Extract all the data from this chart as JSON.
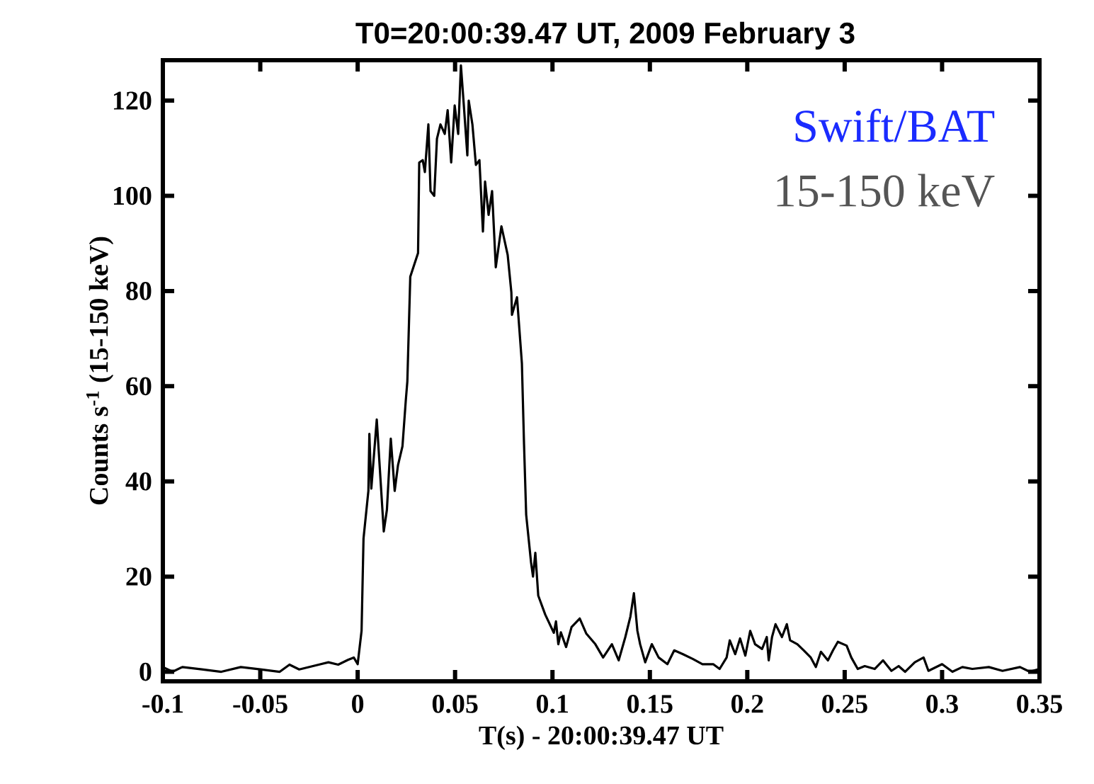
{
  "chart_data": {
    "type": "line",
    "title": "T0=20:00:39.47 UT, 2009 February 3",
    "xlabel": "T(s) - 20:00:39.47 UT",
    "ylabel": "Counts s$^{-1}$ (15-150 keV)",
    "annotations": [
      "Swift/BAT",
      "15-150 keV"
    ],
    "x": [
      -0.1,
      -0.095,
      -0.09,
      -0.08,
      -0.07,
      -0.06,
      -0.05,
      -0.04,
      -0.035,
      -0.03,
      -0.02,
      -0.015,
      -0.01,
      -0.005,
      -0.002,
      0.0,
      0.002,
      0.003,
      0.0055,
      0.006,
      0.007,
      0.0098,
      0.0134,
      0.015,
      0.017,
      0.019,
      0.0207,
      0.023,
      0.0247,
      0.0255,
      0.027,
      0.031,
      0.0316,
      0.0334,
      0.0345,
      0.0363,
      0.0374,
      0.0393,
      0.0407,
      0.0425,
      0.0447,
      0.0462,
      0.048,
      0.0498,
      0.0516,
      0.053,
      0.0545,
      0.0563,
      0.057,
      0.0589,
      0.0607,
      0.0625,
      0.0643,
      0.0654,
      0.0672,
      0.069,
      0.0709,
      0.0738,
      0.077,
      0.0789,
      0.0792,
      0.0818,
      0.0843,
      0.0854,
      0.0865,
      0.089,
      0.09,
      0.0912,
      0.0927,
      0.0963,
      0.1007,
      0.1018,
      0.103,
      0.1043,
      0.107,
      0.1098,
      0.114,
      0.1174,
      0.122,
      0.126,
      0.1305,
      0.134,
      0.1374,
      0.14,
      0.1418,
      0.1436,
      0.145,
      0.1476,
      0.151,
      0.1545,
      0.159,
      0.1625,
      0.167,
      0.172,
      0.177,
      0.1825,
      0.1858,
      0.1894,
      0.191,
      0.1938,
      0.1963,
      0.199,
      0.2015,
      0.204,
      0.2076,
      0.21,
      0.211,
      0.2127,
      0.2145,
      0.2178,
      0.2203,
      0.222,
      0.2257,
      0.229,
      0.2326,
      0.2352,
      0.2378,
      0.2414,
      0.244,
      0.2465,
      0.251,
      0.2534,
      0.2567,
      0.2603,
      0.2654,
      0.2697,
      0.274,
      0.2777,
      0.281,
      0.286,
      0.2905,
      0.293,
      0.3,
      0.3053,
      0.3104,
      0.3155,
      0.324,
      0.331,
      0.34,
      0.345,
      0.35
    ],
    "series": [
      {
        "color": "#000000",
        "values": [
          1,
          0,
          1,
          0.5,
          0,
          1,
          0.5,
          0,
          1.5,
          0.5,
          1.5,
          2,
          1.5,
          2.5,
          3,
          1.6,
          8.6,
          28,
          38,
          50,
          38.5,
          53,
          29.5,
          34,
          49,
          38,
          43.4,
          47.4,
          57,
          61,
          83,
          88,
          107,
          107.5,
          105,
          115,
          101,
          100,
          112,
          115,
          113,
          118,
          107,
          119,
          113,
          127.4,
          119,
          108.5,
          120,
          115,
          106.5,
          107.5,
          92.5,
          103,
          96,
          101,
          85,
          93.6,
          87.6,
          79.7,
          75,
          78.7,
          64.8,
          47.8,
          33,
          23,
          20,
          25,
          16,
          12,
          8.2,
          10.6,
          5.8,
          8.3,
          5.2,
          9.4,
          11.2,
          8,
          5.8,
          3,
          5.8,
          2.4,
          7.3,
          11.6,
          16.5,
          8.6,
          5.8,
          2,
          5.8,
          3,
          1.6,
          4.5,
          3.7,
          2.7,
          1.6,
          1.6,
          0.6,
          3,
          6.6,
          3.7,
          7,
          3.4,
          8.6,
          5.8,
          4.8,
          7.3,
          2.4,
          7.3,
          10,
          7.3,
          10,
          6.6,
          5.8,
          4.5,
          3,
          1,
          4.2,
          2.4,
          4.5,
          6.3,
          5.5,
          3,
          0.6,
          1.2,
          0.6,
          2.4,
          0.2,
          1.2,
          0,
          2,
          3,
          0.2,
          1.6,
          0,
          1,
          0.6,
          1,
          0.2,
          1,
          0,
          0.6
        ]
      }
    ],
    "xlim": [
      -0.1,
      0.35
    ],
    "ylim": [
      -2,
      128.5
    ],
    "xticks": [
      -0.1,
      -0.05,
      0,
      0.05,
      0.1,
      0.15,
      0.2,
      0.25,
      0.3,
      0.35
    ],
    "yticks": [
      0,
      20,
      40,
      60,
      80,
      100,
      120
    ],
    "grid": false,
    "line_style": "solid",
    "marker": "none"
  }
}
